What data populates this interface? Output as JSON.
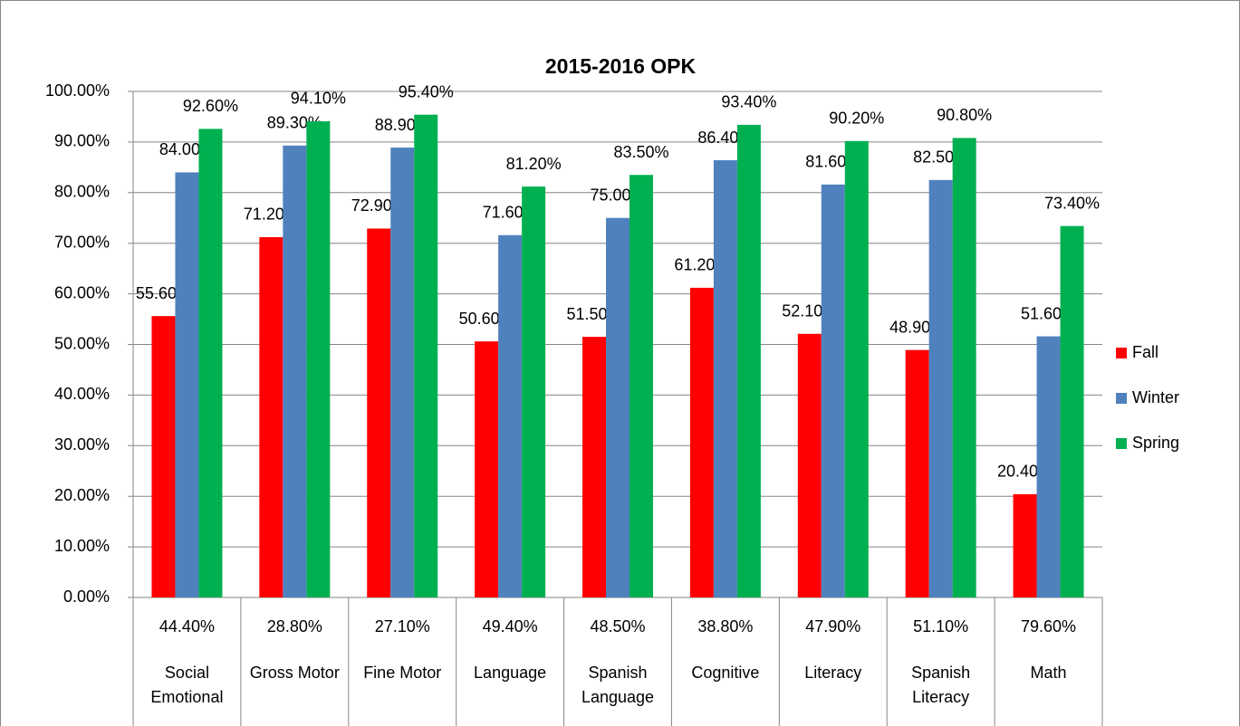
{
  "chart_data": {
    "type": "bar",
    "title": "2015-2016 OPK",
    "categories": [
      "Social Emotional",
      "Gross Motor",
      "Fine Motor",
      "Language",
      "Spanish Language",
      "Cognitive",
      "Literacy",
      "Spanish Literacy",
      "Math"
    ],
    "series": [
      {
        "name": "Fall",
        "color": "#ff0000",
        "values": [
          55.6,
          71.2,
          72.9,
          50.6,
          51.5,
          61.2,
          52.1,
          48.9,
          20.4
        ],
        "value_labels": [
          "55.60%",
          "71.20%",
          "72.90%",
          "50.60%",
          "51.50%",
          "61.20%",
          "52.10%",
          "48.90%",
          "20.40%"
        ]
      },
      {
        "name": "Winter",
        "color": "#4f81bd",
        "values": [
          84.0,
          89.3,
          88.9,
          71.6,
          75.0,
          86.4,
          81.6,
          82.5,
          51.6
        ],
        "value_labels": [
          "84.00%",
          "89.30%",
          "88.90%",
          "71.60%",
          "75.00%",
          "86.40%",
          "81.60%",
          "82.50%",
          "51.60%"
        ]
      },
      {
        "name": "Spring",
        "color": "#00b050",
        "values": [
          92.6,
          94.1,
          95.4,
          81.2,
          83.5,
          93.4,
          90.2,
          90.8,
          73.4
        ],
        "value_labels": [
          "92.60%",
          "94.10%",
          "95.40%",
          "81.20%",
          "83.50%",
          "93.40%",
          "90.20%",
          "90.80%",
          "73.40%"
        ]
      }
    ],
    "table_row": [
      "44.40%",
      "28.80%",
      "27.10%",
      "49.40%",
      "48.50%",
      "38.80%",
      "47.90%",
      "51.10%",
      "79.60%"
    ],
    "ylim": [
      0,
      100
    ],
    "yticks": [
      {
        "value": 0,
        "label": "0.00%"
      },
      {
        "value": 10,
        "label": "10.00%"
      },
      {
        "value": 20,
        "label": "20.00%"
      },
      {
        "value": 30,
        "label": "30.00%"
      },
      {
        "value": 40,
        "label": "40.00%"
      },
      {
        "value": 50,
        "label": "50.00%"
      },
      {
        "value": 60,
        "label": "60.00%"
      },
      {
        "value": 70,
        "label": "70.00%"
      },
      {
        "value": 80,
        "label": "80.00%"
      },
      {
        "value": 90,
        "label": "90.00%"
      },
      {
        "value": 100,
        "label": "100.00%"
      }
    ],
    "grid": true,
    "legend": "right"
  }
}
